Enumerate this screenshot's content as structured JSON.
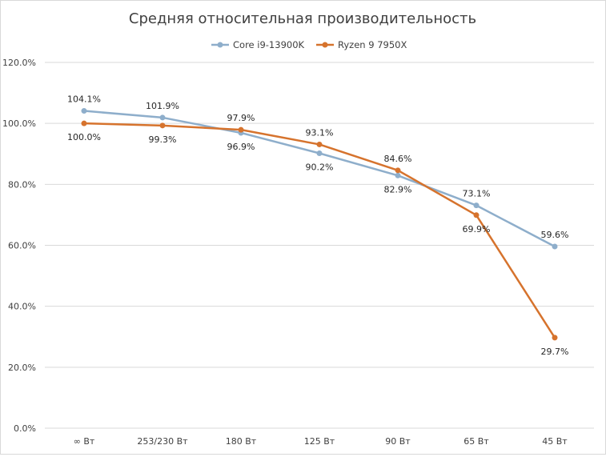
{
  "chart_data": {
    "type": "line",
    "title": "Средняя относительная производительность",
    "categories": [
      "∞ Вт",
      "253/230 Вт",
      "180 Вт",
      "125 Вт",
      "90 Вт",
      "65 Вт",
      "45 Вт"
    ],
    "ylim": [
      0,
      120
    ],
    "yticks": [
      0,
      20,
      40,
      60,
      80,
      100,
      120
    ],
    "ytick_labels": [
      "0.0%",
      "20.0%",
      "40.0%",
      "60.0%",
      "80.0%",
      "100.0%",
      "120.0%"
    ],
    "grid": true,
    "legend_position": "top",
    "series": [
      {
        "name": "Core i9-13900K",
        "color": "#8eaecb",
        "values": [
          104.1,
          101.9,
          96.9,
          90.2,
          82.9,
          73.1,
          59.6
        ],
        "labels": [
          "104.1%",
          "101.9%",
          "96.9%",
          "90.2%",
          "82.9%",
          "73.1%",
          "59.6%"
        ]
      },
      {
        "name": "Ryzen 9 7950X",
        "color": "#d6732d",
        "values": [
          100.0,
          99.3,
          97.9,
          93.1,
          84.6,
          69.9,
          29.7
        ],
        "labels": [
          "100.0%",
          "99.3%",
          "97.9%",
          "93.1%",
          "84.6%",
          "69.9%",
          "29.7%"
        ]
      }
    ]
  }
}
